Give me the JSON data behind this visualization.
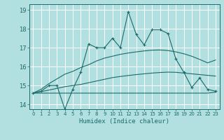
{
  "xlabel": "Humidex (Indice chaleur)",
  "xlim": [
    -0.5,
    23.5
  ],
  "ylim": [
    13.75,
    19.3
  ],
  "yticks": [
    14,
    15,
    16,
    17,
    18,
    19
  ],
  "xticks": [
    0,
    1,
    2,
    3,
    4,
    5,
    6,
    7,
    8,
    9,
    10,
    11,
    12,
    13,
    14,
    15,
    16,
    17,
    18,
    19,
    20,
    21,
    22,
    23
  ],
  "bg_color": "#b2dfdf",
  "grid_color": "#ffffff",
  "line_color": "#1a6b6b",
  "x_data": [
    0,
    1,
    2,
    3,
    4,
    5,
    6,
    7,
    8,
    9,
    10,
    11,
    12,
    13,
    14,
    15,
    16,
    17,
    18,
    19,
    20,
    21,
    22,
    23
  ],
  "y_main": [
    14.6,
    14.7,
    15.0,
    15.0,
    13.75,
    14.8,
    15.7,
    17.2,
    17.0,
    17.0,
    17.5,
    17.0,
    18.9,
    17.7,
    17.15,
    17.95,
    17.95,
    17.75,
    16.4,
    15.7,
    14.9,
    15.4,
    14.8,
    14.7
  ],
  "y_upper": [
    14.6,
    14.8,
    15.1,
    15.35,
    15.6,
    15.75,
    15.95,
    16.1,
    16.3,
    16.45,
    16.55,
    16.65,
    16.72,
    16.78,
    16.83,
    16.87,
    16.88,
    16.85,
    16.78,
    16.68,
    16.55,
    16.38,
    16.2,
    16.35
  ],
  "y_lower": [
    14.6,
    14.68,
    14.76,
    14.85,
    14.94,
    15.0,
    15.06,
    15.15,
    15.24,
    15.33,
    15.42,
    15.48,
    15.53,
    15.58,
    15.62,
    15.66,
    15.69,
    15.71,
    15.7,
    15.66,
    15.62,
    15.58,
    15.54,
    15.5
  ],
  "y_flat": [
    14.6,
    14.6,
    14.6,
    14.6,
    14.6,
    14.6,
    14.6,
    14.6,
    14.6,
    14.6,
    14.6,
    14.6,
    14.6,
    14.6,
    14.6,
    14.6,
    14.6,
    14.6,
    14.6,
    14.6,
    14.6,
    14.6,
    14.6,
    14.65
  ]
}
